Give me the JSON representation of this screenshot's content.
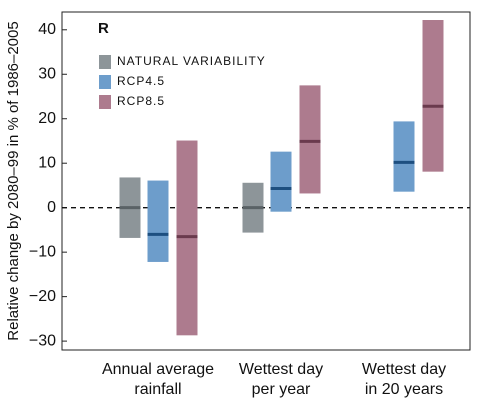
{
  "chart_data": {
    "type": "range_bar",
    "panel_label": "R",
    "y_label": "Relative change by 2080–99 in % of 1986–2005",
    "categories": [
      [
        "Annual average",
        "rainfall"
      ],
      [
        "Wettest day",
        "per year"
      ],
      [
        "Wettest day",
        "in 20 years"
      ]
    ],
    "ylim": [
      -32,
      44
    ],
    "yticks": [
      {
        "value": -30,
        "label": "−30"
      },
      {
        "value": -20,
        "label": "−20"
      },
      {
        "value": -10,
        "label": "−10"
      },
      0,
      10,
      20,
      30,
      40
    ],
    "series": [
      {
        "name": "NATURAL VARIABILITY",
        "color": "#8d9599",
        "median_color": "#5a6266",
        "low": [
          -6.8,
          -5.6,
          null
        ],
        "high": [
          6.8,
          5.6,
          null
        ],
        "median": [
          0,
          0,
          null
        ]
      },
      {
        "name": "RCP4.5",
        "color": "#6d9dcb",
        "median_color": "#1d4f80",
        "low": [
          -12.2,
          -0.9,
          3.6
        ],
        "high": [
          6.1,
          12.6,
          19.4
        ],
        "median": [
          -6,
          4.3,
          10.2
        ]
      },
      {
        "name": "RCP8.5",
        "color": "#ad7b8e",
        "median_color": "#6a3a4d",
        "low": [
          -28.7,
          3.2,
          8.1
        ],
        "high": [
          15.1,
          27.5,
          42.2
        ],
        "median": [
          -6.5,
          14.9,
          22.8
        ]
      }
    ]
  }
}
